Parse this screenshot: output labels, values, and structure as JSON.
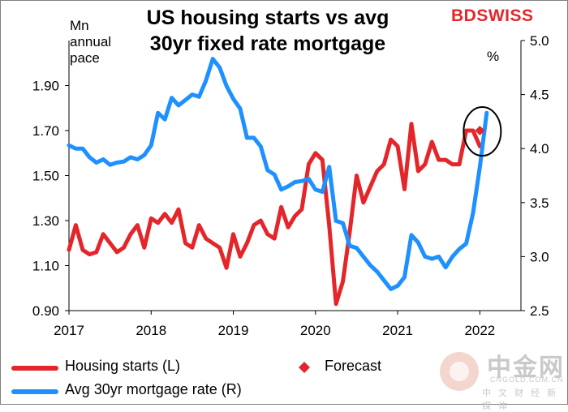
{
  "title": "US housing starts vs avg 30yr fixed rate mortgage",
  "title_line1": "US housing starts vs avg",
  "title_line2": "30yr fixed rate mortgage",
  "brand": "BDSWISS",
  "watermark": {
    "name": "中金网",
    "url": "CNGOLD.COM.CN",
    "sub": "中 文 财 经 新 媒 体"
  },
  "colors": {
    "housing": "#e4262b",
    "mortgage": "#1e90ff",
    "forecast": "#e4262b"
  },
  "chart_data": {
    "type": "line",
    "title": "US housing starts vs avg 30yr fixed rate mortgage",
    "ylabel_left": "Mn annual pace",
    "ylabel_right": "%",
    "xlabel": "",
    "x_ticks": [
      "2017",
      "2018",
      "2019",
      "2020",
      "2021",
      "2022"
    ],
    "x_range": [
      2017.0,
      2022.5
    ],
    "y_left_range": [
      0.9,
      2.1
    ],
    "y_left_ticks": [
      "0.90",
      "1.10",
      "1.30",
      "1.50",
      "1.70",
      "1.90"
    ],
    "y_right_range": [
      2.5,
      5.0
    ],
    "y_right_ticks": [
      "2.5",
      "3.0",
      "3.5",
      "4.0",
      "4.5",
      "5.0"
    ],
    "legend_position": "bottom",
    "series": [
      {
        "name": "Housing starts (L)",
        "axis": "left",
        "start": "2017-01",
        "values": [
          1.17,
          1.28,
          1.17,
          1.15,
          1.16,
          1.24,
          1.2,
          1.16,
          1.18,
          1.24,
          1.28,
          1.18,
          1.31,
          1.29,
          1.33,
          1.29,
          1.35,
          1.2,
          1.18,
          1.28,
          1.22,
          1.2,
          1.18,
          1.09,
          1.24,
          1.14,
          1.2,
          1.28,
          1.3,
          1.24,
          1.22,
          1.36,
          1.27,
          1.32,
          1.35,
          1.55,
          1.6,
          1.57,
          1.28,
          0.93,
          1.03,
          1.25,
          1.5,
          1.38,
          1.45,
          1.52,
          1.55,
          1.66,
          1.63,
          1.44,
          1.73,
          1.52,
          1.55,
          1.65,
          1.57,
          1.57,
          1.55,
          1.55,
          1.7,
          1.7,
          1.63
        ]
      },
      {
        "name": "Avg 30yr mortgage rate (R)",
        "axis": "right",
        "start": "2017-01",
        "values": [
          4.03,
          4.0,
          4.0,
          3.92,
          3.87,
          3.9,
          3.85,
          3.87,
          3.88,
          3.92,
          3.9,
          3.94,
          4.03,
          4.33,
          4.27,
          4.47,
          4.4,
          4.45,
          4.5,
          4.48,
          4.63,
          4.83,
          4.75,
          4.58,
          4.46,
          4.37,
          4.1,
          4.1,
          4.02,
          3.8,
          3.76,
          3.62,
          3.65,
          3.69,
          3.7,
          3.72,
          3.62,
          3.6,
          3.83,
          3.33,
          3.31,
          3.1,
          3.08,
          3.0,
          2.92,
          2.86,
          2.78,
          2.7,
          2.73,
          2.81,
          3.2,
          3.13,
          3.0,
          2.98,
          3.0,
          2.9,
          3.0,
          3.07,
          3.12,
          3.4,
          3.83,
          4.33
        ]
      }
    ],
    "forecast": {
      "name": "Forecast",
      "x": "2022-01",
      "value": 1.7,
      "axis": "left"
    },
    "annotation": "circle around latest values"
  }
}
